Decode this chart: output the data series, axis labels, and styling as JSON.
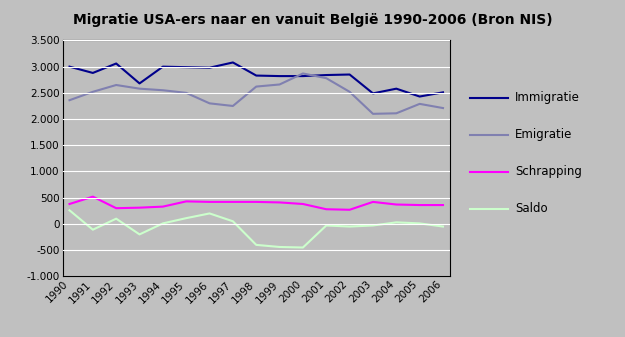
{
  "title": "Migratie USA-ers naar en vanuit België 1990-2006 (Bron NIS)",
  "years": [
    1990,
    1991,
    1992,
    1993,
    1994,
    1995,
    1996,
    1997,
    1998,
    1999,
    2000,
    2001,
    2002,
    2003,
    2004,
    2005,
    2006
  ],
  "immigratie": [
    3000,
    2880,
    3060,
    2680,
    3000,
    2990,
    2980,
    3080,
    2830,
    2820,
    2820,
    2840,
    2850,
    2490,
    2580,
    2430,
    2510
  ],
  "emigratie": [
    2360,
    2520,
    2650,
    2580,
    2550,
    2500,
    2300,
    2250,
    2620,
    2660,
    2870,
    2780,
    2520,
    2100,
    2110,
    2290,
    2210
  ],
  "schrapping": [
    380,
    520,
    300,
    310,
    330,
    430,
    420,
    420,
    420,
    410,
    380,
    280,
    270,
    420,
    370,
    360,
    360
  ],
  "saldo": [
    260,
    -110,
    100,
    -200,
    10,
    110,
    200,
    50,
    -400,
    -440,
    -450,
    -30,
    -50,
    -30,
    30,
    10,
    -50
  ],
  "immigratie_color": "#00008B",
  "emigratie_color": "#8080B0",
  "schrapping_color": "#FF00FF",
  "saldo_color": "#CCFFCC",
  "outer_bg_color": "#C0C0C0",
  "plot_bg_color": "#BEBEBE",
  "ylim": [
    -1000,
    3500
  ],
  "yticks": [
    -1000,
    -500,
    0,
    500,
    1000,
    1500,
    2000,
    2500,
    3000,
    3500
  ],
  "ytick_labels": [
    "-1.000",
    "-500",
    "0",
    "500",
    "1.000",
    "1.500",
    "2.000",
    "2.500",
    "3.000",
    "3.500"
  ],
  "legend_labels": [
    "Immigratie",
    "Emigratie",
    "Schrapping",
    "Saldo"
  ],
  "title_fontsize": 10,
  "tick_fontsize": 7.5
}
